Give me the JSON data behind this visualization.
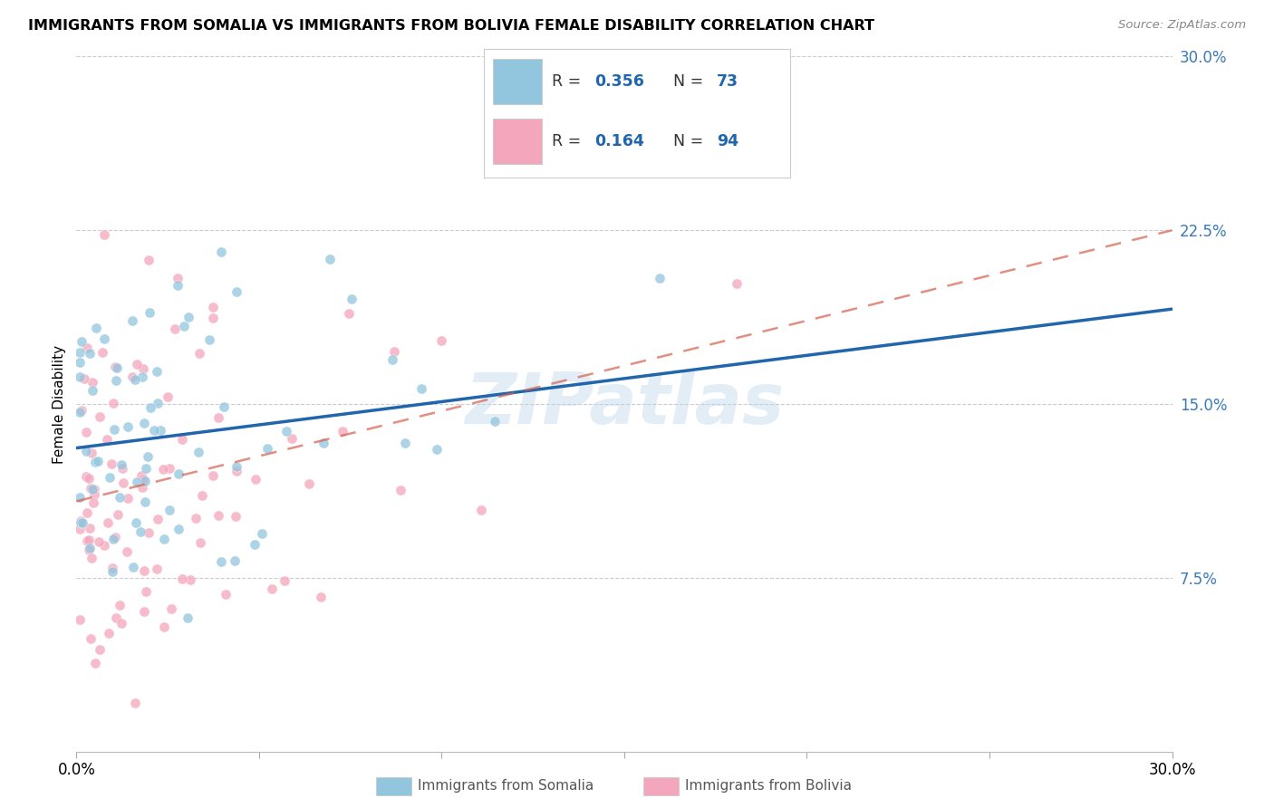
{
  "title": "IMMIGRANTS FROM SOMALIA VS IMMIGRANTS FROM BOLIVIA FEMALE DISABILITY CORRELATION CHART",
  "source": "Source: ZipAtlas.com",
  "ylabel": "Female Disability",
  "xlabel_somalia": "Immigrants from Somalia",
  "xlabel_bolivia": "Immigrants from Bolivia",
  "xlim": [
    0.0,
    0.3
  ],
  "ylim": [
    0.0,
    0.3
  ],
  "ytick_labels": [
    "7.5%",
    "15.0%",
    "22.5%",
    "30.0%"
  ],
  "ytick_vals": [
    0.075,
    0.15,
    0.225,
    0.3
  ],
  "xtick_labels": [
    "0.0%",
    "",
    "",
    "",
    "",
    "",
    "30.0%"
  ],
  "xtick_vals": [
    0.0,
    0.05,
    0.1,
    0.15,
    0.2,
    0.25,
    0.3
  ],
  "somalia_color": "#92c5de",
  "bolivia_color": "#f4a6bc",
  "somalia_R": 0.356,
  "somalia_N": 73,
  "bolivia_R": 0.164,
  "bolivia_N": 94,
  "somalia_line_color": "#2166ac",
  "bolivia_line_color": "#d6604d",
  "somalia_line_y0": 0.131,
  "somalia_line_y1": 0.191,
  "bolivia_line_y0": 0.108,
  "bolivia_line_y1": 0.225,
  "watermark": "ZIPatlas",
  "background_color": "#ffffff",
  "grid_color": "#cccccc"
}
